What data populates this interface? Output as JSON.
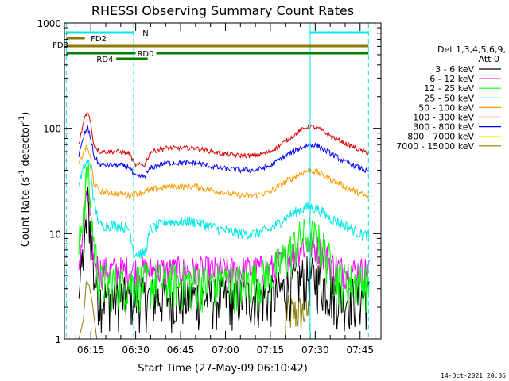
{
  "chart_data": {
    "type": "line",
    "title": "RHESSI Observing Summary Count Rates",
    "xlabel": "Start Time (27-May-09 06:10:42)",
    "ylabel_main": "Count Rate (s",
    "ylabel_sup1": "-1",
    "ylabel_mid": " detector",
    "ylabel_sup2": "-1",
    "ylabel_end": ")",
    "y_scale": "log",
    "ylim": [
      1,
      1000
    ],
    "xlim_minutes": [
      6.18,
      47.97
    ],
    "x_ticks": [
      {
        "label": "06:15",
        "minute": 15
      },
      {
        "label": "06:30",
        "minute": 30
      },
      {
        "label": "06:45",
        "minute": 45
      },
      {
        "label": "07:00",
        "minute": 60
      },
      {
        "label": "07:15",
        "minute": 75
      },
      {
        "label": "07:30",
        "minute": 90
      },
      {
        "label": "07:45",
        "minute": 105
      }
    ],
    "y_ticks": [
      {
        "label": "1",
        "value": 1
      },
      {
        "label": "10",
        "value": 10
      },
      {
        "label": "100",
        "value": 100
      },
      {
        "label": "1000",
        "value": 1000
      }
    ],
    "legend_header_1": "Det 1,3,4,5,6,9,",
    "legend_header_2": "Att 0",
    "legend_placement": "right",
    "series": [
      {
        "name": "3 - 6 keV",
        "color": "#000000",
        "x": [
          11,
          13,
          14,
          15,
          16,
          18,
          22,
          30,
          40,
          55,
          65,
          75,
          80,
          85,
          88,
          92,
          96,
          100,
          105,
          108
        ],
        "values": [
          3,
          8,
          20,
          10,
          4,
          2.5,
          2.5,
          2.5,
          2.5,
          2.5,
          2.5,
          2.6,
          3,
          3.8,
          4,
          3.5,
          2.7,
          2.5,
          2.5,
          2.5
        ]
      },
      {
        "name": "6 - 12 keV",
        "color": "#ff00ff",
        "x": [
          11,
          13,
          14,
          15,
          16,
          18,
          22,
          30,
          40,
          55,
          65,
          75,
          80,
          85,
          88,
          92,
          96,
          100,
          105,
          108
        ],
        "values": [
          5,
          15,
          25,
          12,
          6,
          4.5,
          4.5,
          4.5,
          4.5,
          4.5,
          4.5,
          4.7,
          5.5,
          7.5,
          8,
          7,
          5,
          4.5,
          4.5,
          4.5
        ]
      },
      {
        "name": "12 - 25 keV",
        "color": "#00ff00",
        "x": [
          11,
          13,
          14,
          15,
          16,
          18,
          22,
          30,
          40,
          55,
          65,
          75,
          80,
          85,
          88,
          92,
          96,
          100,
          105,
          108
        ],
        "values": [
          7,
          25,
          38,
          18,
          8,
          3.5,
          3.5,
          3.5,
          3.5,
          3.5,
          3.5,
          4,
          6,
          9,
          10,
          8,
          4.5,
          3.5,
          3.5,
          3.5
        ]
      },
      {
        "name": "25 - 50 keV",
        "color": "#00e5e5",
        "x": [
          11,
          13,
          14,
          15,
          16,
          18,
          24,
          28,
          29.5,
          33,
          35,
          40,
          50,
          58,
          65,
          70,
          75,
          80,
          85,
          88,
          91,
          95,
          100,
          105,
          108
        ],
        "values": [
          30,
          45,
          50,
          40,
          20,
          12,
          12,
          11,
          6.5,
          6.5,
          11,
          13,
          13,
          11,
          10,
          10,
          11,
          14,
          17,
          18,
          17,
          14,
          12,
          10,
          9.5
        ]
      },
      {
        "name": "50 - 100 keV",
        "color": "#ff9900",
        "x": [
          11,
          13,
          14,
          15,
          16,
          18,
          24,
          28,
          30,
          40,
          50,
          58,
          65,
          70,
          75,
          80,
          85,
          88,
          91,
          95,
          100,
          105,
          108
        ],
        "values": [
          45,
          65,
          65,
          50,
          30,
          25,
          24,
          23,
          24,
          28,
          28,
          25,
          23,
          23,
          25,
          31,
          37,
          40,
          38,
          33,
          28,
          24,
          22
        ]
      },
      {
        "name": "100 - 300 keV",
        "color": "#dd0000",
        "x": [
          11,
          13,
          14,
          15,
          16,
          18,
          24,
          28,
          29.5,
          33,
          35,
          40,
          50,
          58,
          65,
          70,
          75,
          80,
          85,
          88,
          91,
          95,
          100,
          105,
          108
        ],
        "values": [
          70,
          130,
          145,
          110,
          70,
          60,
          60,
          58,
          45,
          45,
          60,
          65,
          65,
          58,
          55,
          55,
          60,
          75,
          95,
          105,
          100,
          85,
          72,
          62,
          58
        ]
      },
      {
        "name": "300 - 800 keV",
        "color": "#0000ff",
        "x": [
          11,
          13,
          14,
          15,
          16,
          18,
          24,
          28,
          29.5,
          33,
          35,
          40,
          50,
          58,
          65,
          70,
          75,
          80,
          85,
          88,
          91,
          95,
          100,
          105,
          108
        ],
        "values": [
          55,
          90,
          100,
          80,
          55,
          45,
          45,
          43,
          35,
          35,
          42,
          47,
          47,
          42,
          40,
          40,
          44,
          55,
          65,
          70,
          68,
          58,
          48,
          42,
          38
        ]
      },
      {
        "name": "800 - 7000 keV",
        "color": "#ffff00",
        "x": [],
        "values": []
      },
      {
        "name": "7000 - 15000 keV",
        "color": "#8b7b00",
        "x": [
          11,
          12.5,
          13.5,
          14.5,
          15.5,
          17,
          20,
          80,
          81,
          88,
          88.5,
          90,
          92,
          100
        ],
        "values": [
          1,
          1.5,
          3.5,
          3.2,
          2.2,
          1,
          1,
          1,
          2.4,
          2.4,
          1,
          1,
          1,
          1
        ]
      }
    ],
    "annotations": {
      "fd2": "FD2",
      "fd3": "FD3",
      "rd0": "RD0",
      "rd4": "RD4",
      "n": "N"
    }
  },
  "footer": {
    "timestamp": "14-Oct-2021 20:36"
  }
}
